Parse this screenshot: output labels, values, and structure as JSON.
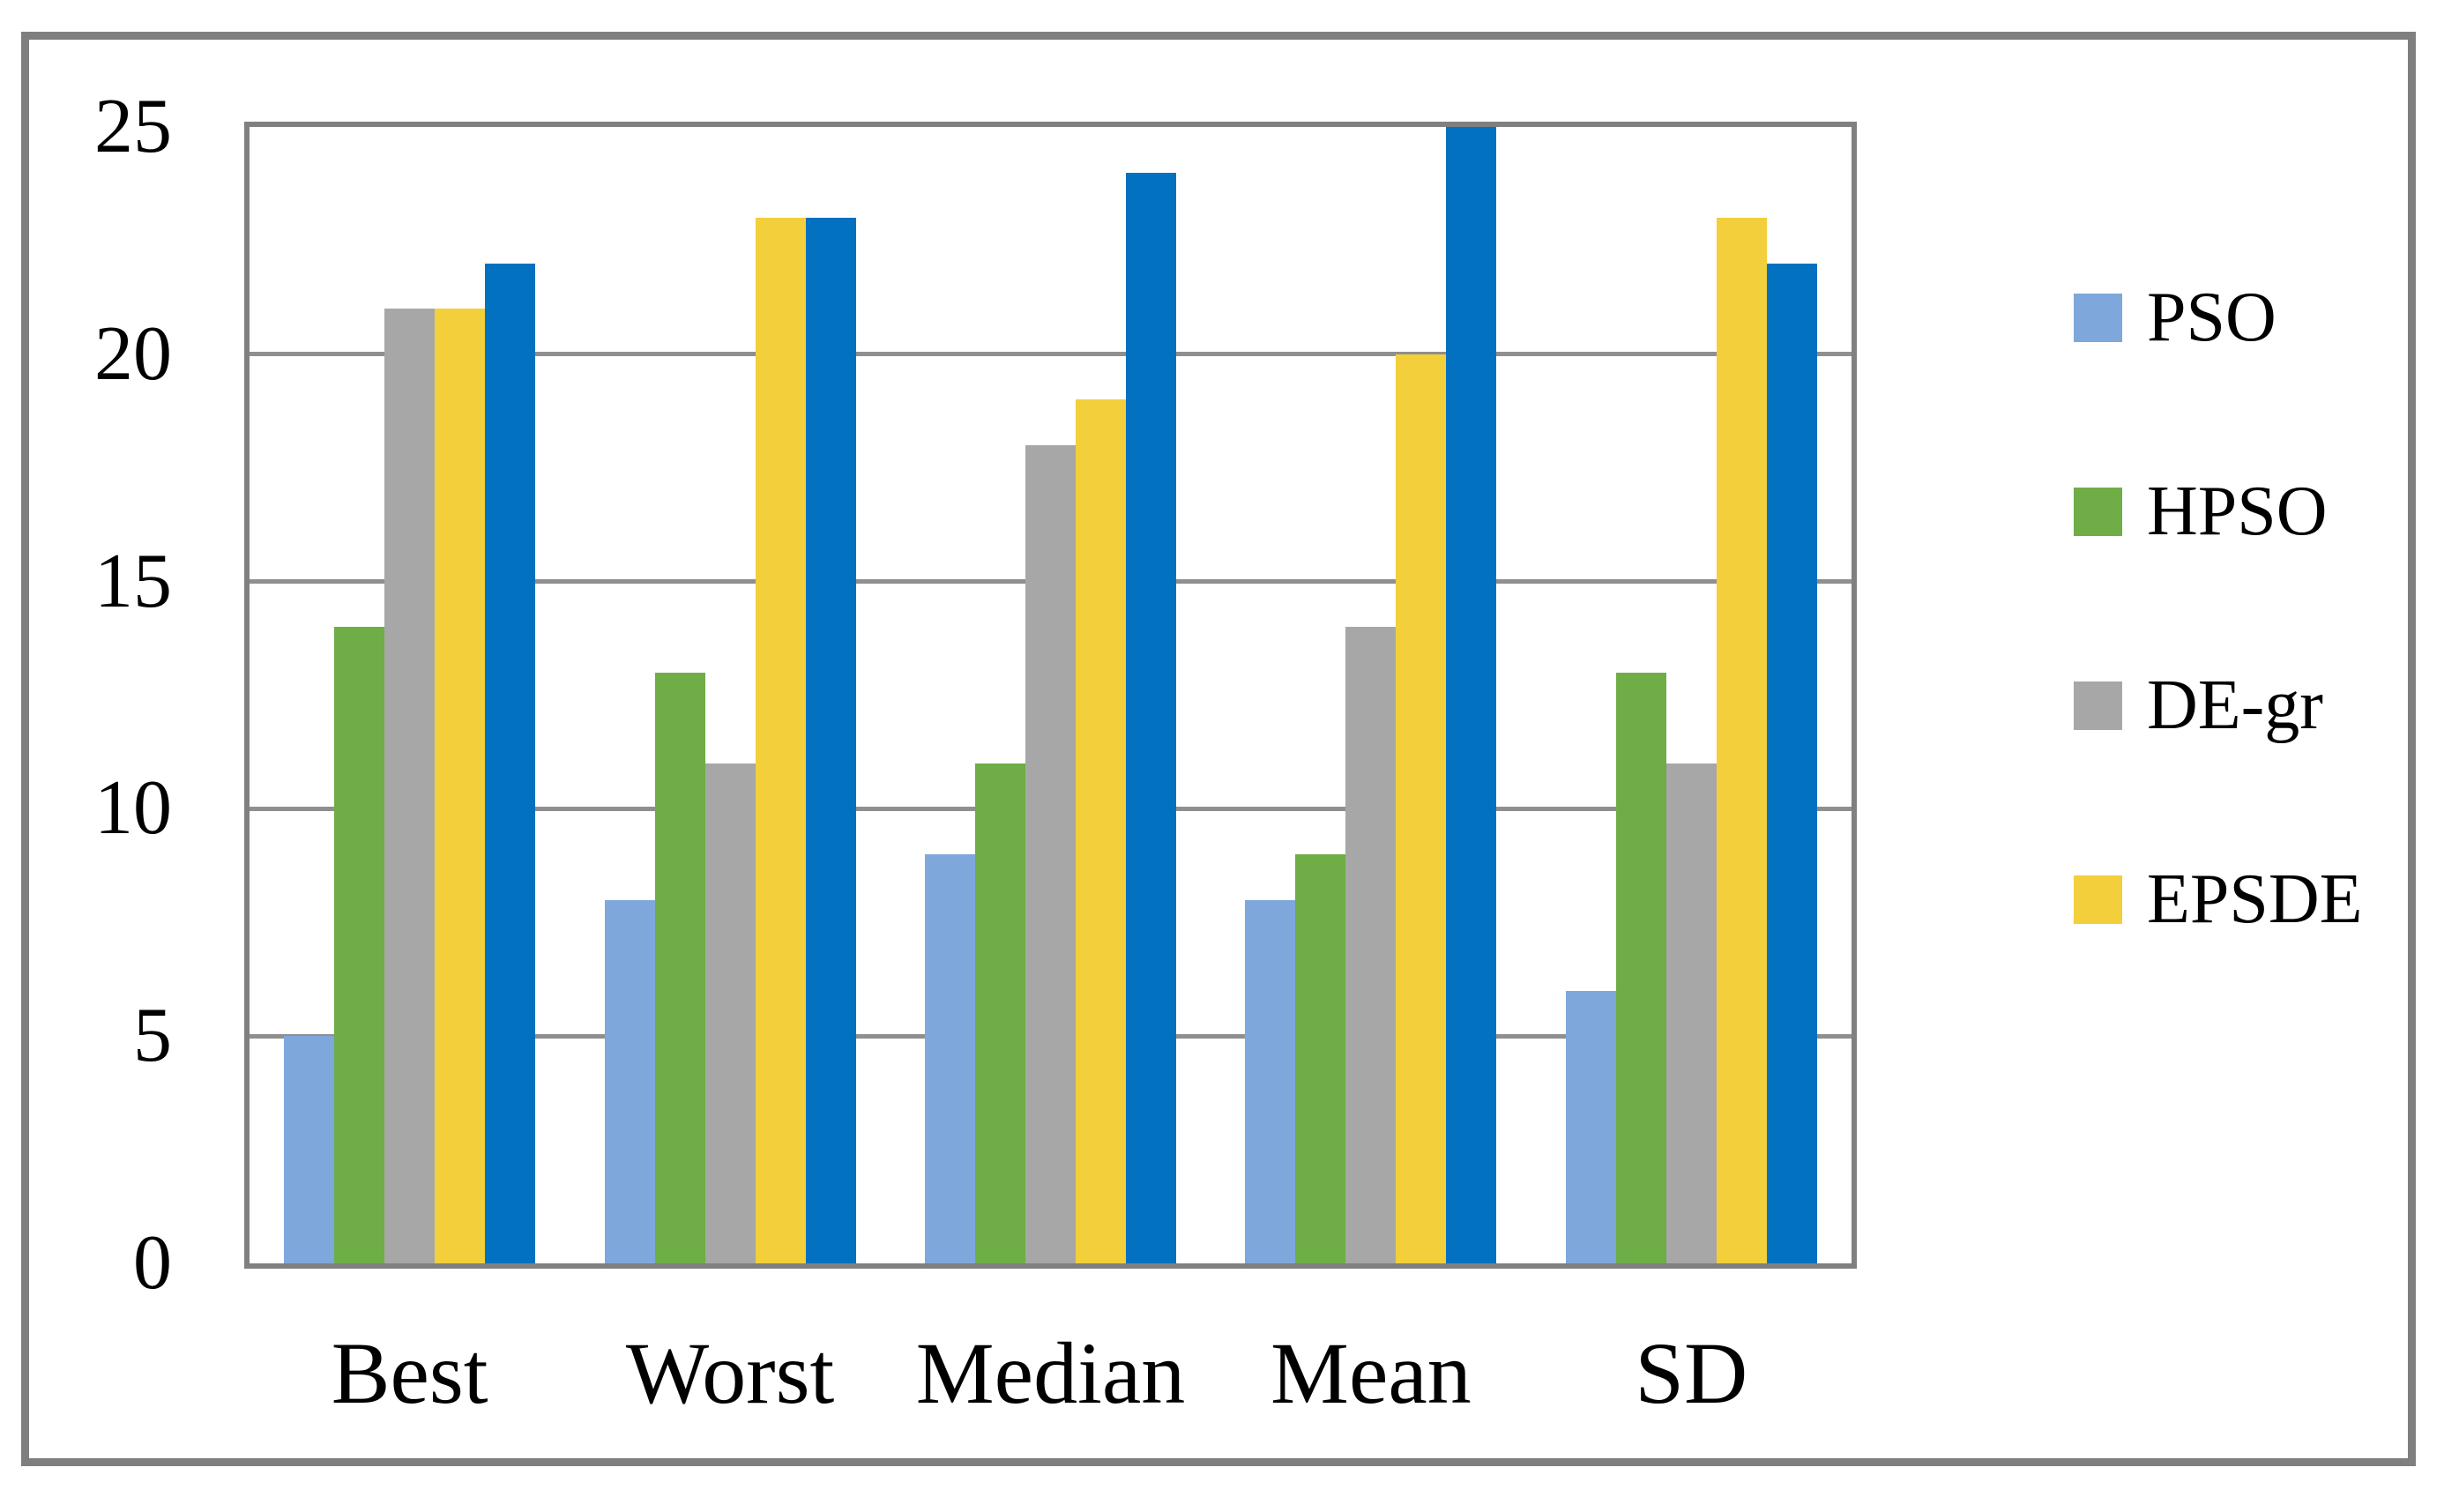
{
  "figure": {
    "background_color": "#ffffff",
    "frame_color": "#7f7f7f",
    "plot_border_color": "#808080",
    "gridline_color": "#8f8f8f",
    "text_color": "#000000"
  },
  "chart_data": {
    "type": "bar",
    "title": "",
    "xlabel": "",
    "ylabel": "",
    "categories": [
      "Best",
      "Worst",
      "Median",
      "Mean",
      "SD"
    ],
    "series": [
      {
        "name": "PSO",
        "color": "#7ea7db",
        "values": [
          5,
          8,
          9,
          8,
          6
        ]
      },
      {
        "name": "HPSO",
        "color": "#6fad47",
        "values": [
          14,
          13,
          11,
          9,
          13
        ]
      },
      {
        "name": "DE-gr",
        "color": "#a7a7a7",
        "values": [
          21,
          11,
          18,
          14,
          11
        ]
      },
      {
        "name": "EPSDE",
        "color": "#f2cf3b",
        "values": [
          21,
          23,
          19,
          20,
          23
        ]
      },
      {
        "name": "",
        "color": "#0171c0",
        "values": [
          22,
          23,
          24,
          25,
          22
        ]
      }
    ],
    "ylim": [
      0,
      25
    ],
    "ytick_step": 5,
    "yticks": [
      "0",
      "5",
      "10",
      "15",
      "20",
      "25"
    ],
    "grid": "horizontal",
    "legend_position": "right",
    "legend_entries": [
      "PSO",
      "HPSO",
      "DE-gr",
      "EPSDE"
    ]
  }
}
